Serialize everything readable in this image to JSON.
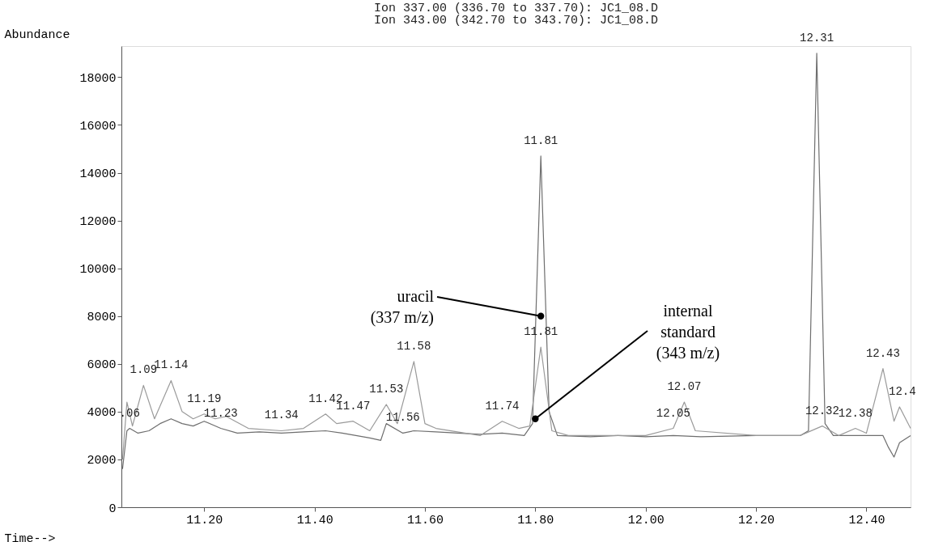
{
  "chart_data": {
    "type": "line",
    "title": "Ion 337.00 (336.70 to 337.70): JC1_08.D",
    "subtitle": "Ion 343.00 (342.70 to 343.70): JC1_08.D",
    "xlabel": "Time-->",
    "ylabel": "Abundance",
    "xlim": [
      11.05,
      12.48
    ],
    "xticks": [
      {
        "value": 11.2,
        "label": "11.20"
      },
      {
        "value": 11.4,
        "label": "11.40"
      },
      {
        "value": 11.6,
        "label": "11.60"
      },
      {
        "value": 11.8,
        "label": "11.80"
      },
      {
        "value": 12.0,
        "label": "12.00"
      },
      {
        "value": 12.2,
        "label": "12.20"
      },
      {
        "value": 12.4,
        "label": "12.40"
      }
    ],
    "ylim": [
      0,
      19300
    ],
    "yticks": [
      0,
      2000,
      4000,
      6000,
      8000,
      10000,
      12000,
      14000,
      16000,
      18000
    ],
    "grid": false,
    "series": [
      {
        "color": "#6e6e6e",
        "x": [
          11.052,
          11.06,
          11.065,
          11.08,
          11.1,
          11.12,
          11.14,
          11.16,
          11.18,
          11.2,
          11.23,
          11.26,
          11.3,
          11.34,
          11.38,
          11.42,
          11.45,
          11.5,
          11.52,
          11.53,
          11.56,
          11.58,
          11.62,
          11.7,
          11.74,
          11.78,
          11.795,
          11.81,
          11.825,
          11.84,
          11.9,
          11.95,
          12.0,
          12.05,
          12.1,
          12.2,
          12.28,
          12.295,
          12.31,
          12.325,
          12.34,
          12.4,
          12.43,
          12.44,
          12.45,
          12.46,
          12.48
        ],
        "values": [
          1600,
          3200,
          3300,
          3100,
          3200,
          3500,
          3700,
          3500,
          3400,
          3600,
          3300,
          3100,
          3150,
          3100,
          3150,
          3200,
          3100,
          2900,
          2800,
          3500,
          3100,
          3200,
          3150,
          3050,
          3100,
          3000,
          3500,
          14700,
          4000,
          3000,
          2950,
          3000,
          2950,
          3000,
          2950,
          3000,
          3000,
          3200,
          19000,
          3500,
          3000,
          3000,
          3000,
          2500,
          2100,
          2700,
          3000
        ]
      },
      {
        "color": "#9a9a9a",
        "x": [
          11.052,
          11.06,
          11.07,
          11.09,
          11.11,
          11.14,
          11.16,
          11.18,
          11.2,
          11.22,
          11.24,
          11.28,
          11.34,
          11.38,
          11.42,
          11.44,
          11.47,
          11.5,
          11.53,
          11.55,
          11.58,
          11.6,
          11.62,
          11.7,
          11.74,
          11.77,
          11.79,
          11.81,
          11.83,
          11.86,
          11.95,
          12.0,
          12.05,
          12.07,
          12.09,
          12.2,
          12.28,
          12.32,
          12.35,
          12.38,
          12.4,
          12.43,
          12.45,
          12.46,
          12.48
        ],
        "values": [
          2000,
          4400,
          3400,
          5100,
          3700,
          5300,
          4000,
          3700,
          3900,
          3700,
          3800,
          3300,
          3200,
          3300,
          3900,
          3500,
          3600,
          3200,
          4300,
          3500,
          6100,
          3500,
          3300,
          3000,
          3600,
          3300,
          3400,
          6700,
          3200,
          3000,
          3000,
          3000,
          3300,
          4400,
          3200,
          3000,
          3000,
          3400,
          3000,
          3300,
          3100,
          5800,
          3600,
          4200,
          3300
        ]
      },
      {
        "type": "scatter",
        "marker": "circle",
        "color": "#000000",
        "x": [
          11.81,
          11.8
        ],
        "values": [
          8000,
          3700
        ]
      }
    ],
    "annotations": [
      {
        "text": "1.09",
        "x": 11.09,
        "y": 5100
      },
      {
        "text": ".06",
        "x": 11.065,
        "y": 3300
      },
      {
        "text": "11.14",
        "x": 11.14,
        "y": 5300
      },
      {
        "text": "11.19",
        "x": 11.2,
        "y": 3900
      },
      {
        "text": "11.23",
        "x": 11.23,
        "y": 3300
      },
      {
        "text": "11.34",
        "x": 11.34,
        "y": 3200
      },
      {
        "text": "11.42",
        "x": 11.42,
        "y": 3900
      },
      {
        "text": "11.47",
        "x": 11.47,
        "y": 3600
      },
      {
        "text": "11.53",
        "x": 11.53,
        "y": 4300
      },
      {
        "text": "11.56",
        "x": 11.56,
        "y": 3100
      },
      {
        "text": "11.58",
        "x": 11.58,
        "y": 6100
      },
      {
        "text": "11.74",
        "x": 11.74,
        "y": 3600
      },
      {
        "text": "11.81",
        "x": 11.81,
        "y": 14700
      },
      {
        "text": "11.81",
        "x": 11.81,
        "y": 6700
      },
      {
        "text": "12.05",
        "x": 12.05,
        "y": 3300
      },
      {
        "text": "12.07",
        "x": 12.07,
        "y": 4400
      },
      {
        "text": "12.31",
        "x": 12.31,
        "y": 19000
      },
      {
        "text": "12.32",
        "x": 12.32,
        "y": 3400
      },
      {
        "text": "12.38",
        "x": 12.38,
        "y": 3300
      },
      {
        "text": "12.43",
        "x": 12.43,
        "y": 5800
      },
      {
        "text": "12.4",
        "x": 12.465,
        "y": 4200
      },
      {
        "text": "uracil\n(337 m/z)",
        "x": 11.81,
        "y": 8000
      },
      {
        "text": "internal\nstandard\n(343 m/z)",
        "x": 11.8,
        "y": 3700
      }
    ]
  }
}
